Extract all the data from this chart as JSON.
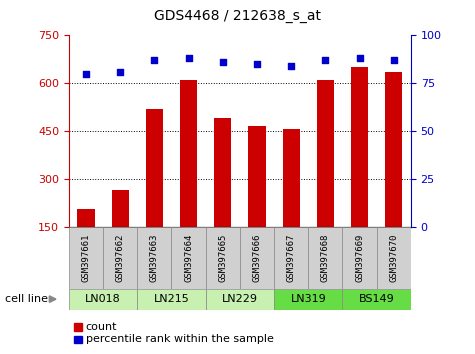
{
  "title": "GDS4468 / 212638_s_at",
  "samples": [
    "GSM397661",
    "GSM397662",
    "GSM397663",
    "GSM397664",
    "GSM397665",
    "GSM397666",
    "GSM397667",
    "GSM397668",
    "GSM397669",
    "GSM397670"
  ],
  "counts": [
    205,
    265,
    520,
    610,
    490,
    465,
    455,
    610,
    650,
    635
  ],
  "percentiles": [
    80,
    81,
    87,
    88,
    86,
    85,
    84,
    87,
    88,
    87
  ],
  "cell_lines": [
    {
      "name": "LN018",
      "start": 0,
      "end": 2,
      "color": "#c8f0b0"
    },
    {
      "name": "LN215",
      "start": 2,
      "end": 4,
      "color": "#c8f0b0"
    },
    {
      "name": "LN229",
      "start": 4,
      "end": 6,
      "color": "#c8f0b0"
    },
    {
      "name": "LN319",
      "start": 6,
      "end": 8,
      "color": "#66dd44"
    },
    {
      "name": "BS149",
      "start": 8,
      "end": 10,
      "color": "#66dd44"
    }
  ],
  "bar_color": "#cc0000",
  "dot_color": "#0000cc",
  "ylim_left": [
    150,
    750
  ],
  "ylim_right": [
    0,
    100
  ],
  "yticks_left": [
    150,
    300,
    450,
    600,
    750
  ],
  "yticks_right": [
    0,
    25,
    50,
    75,
    100
  ],
  "grid_values": [
    300,
    450,
    600
  ],
  "bar_width": 0.5,
  "sample_box_color": "#d0d0d0"
}
